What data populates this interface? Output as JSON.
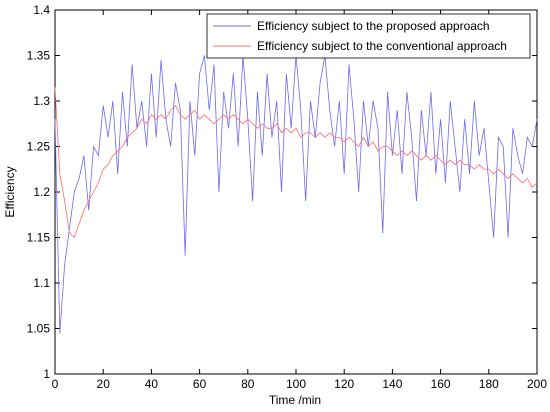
{
  "chart_data": {
    "type": "line",
    "xlabel": "Time /min",
    "ylabel": "Efficiency",
    "x": [
      0,
      2,
      4,
      6,
      8,
      10,
      12,
      14,
      16,
      18,
      20,
      22,
      24,
      26,
      28,
      30,
      32,
      34,
      36,
      38,
      40,
      42,
      44,
      46,
      48,
      50,
      52,
      54,
      56,
      58,
      60,
      62,
      64,
      66,
      68,
      70,
      72,
      74,
      76,
      78,
      80,
      82,
      84,
      86,
      88,
      90,
      92,
      94,
      96,
      98,
      100,
      102,
      104,
      106,
      108,
      110,
      112,
      114,
      116,
      118,
      120,
      122,
      124,
      126,
      128,
      130,
      132,
      134,
      136,
      138,
      140,
      142,
      144,
      146,
      148,
      150,
      152,
      154,
      156,
      158,
      160,
      162,
      164,
      166,
      168,
      170,
      172,
      174,
      176,
      178,
      180,
      182,
      184,
      186,
      188,
      190,
      192,
      194,
      196,
      198,
      200
    ],
    "series": [
      {
        "name": "Efficiency subject to the proposed approach",
        "color": "#6b6bf0",
        "values": [
          1.28,
          1.045,
          1.12,
          1.16,
          1.2,
          1.215,
          1.24,
          1.18,
          1.25,
          1.24,
          1.295,
          1.26,
          1.3,
          1.22,
          1.31,
          1.25,
          1.34,
          1.27,
          1.3,
          1.25,
          1.33,
          1.26,
          1.345,
          1.28,
          1.25,
          1.32,
          1.29,
          1.13,
          1.3,
          1.24,
          1.33,
          1.35,
          1.29,
          1.34,
          1.2,
          1.31,
          1.27,
          1.33,
          1.25,
          1.35,
          1.28,
          1.19,
          1.31,
          1.24,
          1.33,
          1.26,
          1.3,
          1.2,
          1.33,
          1.27,
          1.35,
          1.29,
          1.19,
          1.3,
          1.26,
          1.32,
          1.35,
          1.29,
          1.25,
          1.3,
          1.22,
          1.34,
          1.28,
          1.2,
          1.3,
          1.25,
          1.3,
          1.27,
          1.155,
          1.31,
          1.24,
          1.29,
          1.22,
          1.31,
          1.26,
          1.19,
          1.29,
          1.24,
          1.31,
          1.22,
          1.28,
          1.21,
          1.3,
          1.25,
          1.2,
          1.28,
          1.22,
          1.3,
          1.24,
          1.27,
          1.21,
          1.15,
          1.26,
          1.25,
          1.15,
          1.27,
          1.24,
          1.22,
          1.26,
          1.25,
          1.28
        ]
      },
      {
        "name": "Efficiency subject to the conventional approach",
        "color": "#ff6b6b",
        "values": [
          1.315,
          1.22,
          1.19,
          1.155,
          1.15,
          1.165,
          1.18,
          1.19,
          1.2,
          1.21,
          1.225,
          1.23,
          1.24,
          1.245,
          1.25,
          1.26,
          1.265,
          1.27,
          1.28,
          1.275,
          1.285,
          1.28,
          1.285,
          1.28,
          1.29,
          1.295,
          1.285,
          1.28,
          1.285,
          1.29,
          1.28,
          1.285,
          1.28,
          1.275,
          1.28,
          1.285,
          1.28,
          1.285,
          1.28,
          1.275,
          1.28,
          1.275,
          1.27,
          1.275,
          1.27,
          1.27,
          1.275,
          1.265,
          1.27,
          1.265,
          1.27,
          1.26,
          1.265,
          1.265,
          1.26,
          1.265,
          1.26,
          1.265,
          1.26,
          1.26,
          1.255,
          1.26,
          1.255,
          1.25,
          1.26,
          1.25,
          1.255,
          1.245,
          1.25,
          1.25,
          1.245,
          1.24,
          1.245,
          1.24,
          1.245,
          1.24,
          1.235,
          1.24,
          1.235,
          1.24,
          1.235,
          1.23,
          1.235,
          1.23,
          1.235,
          1.23,
          1.23,
          1.225,
          1.23,
          1.225,
          1.225,
          1.22,
          1.225,
          1.22,
          1.215,
          1.22,
          1.215,
          1.21,
          1.215,
          1.205,
          1.21
        ]
      }
    ],
    "xlim": [
      0,
      200
    ],
    "xticks": [
      0,
      20,
      40,
      60,
      80,
      100,
      120,
      140,
      160,
      180,
      200
    ],
    "ylim": [
      1,
      1.4
    ],
    "yticks": [
      1,
      1.05,
      1.1,
      1.15,
      1.2,
      1.25,
      1.3,
      1.35,
      1.4
    ],
    "grid": false,
    "legend": "upper right"
  }
}
